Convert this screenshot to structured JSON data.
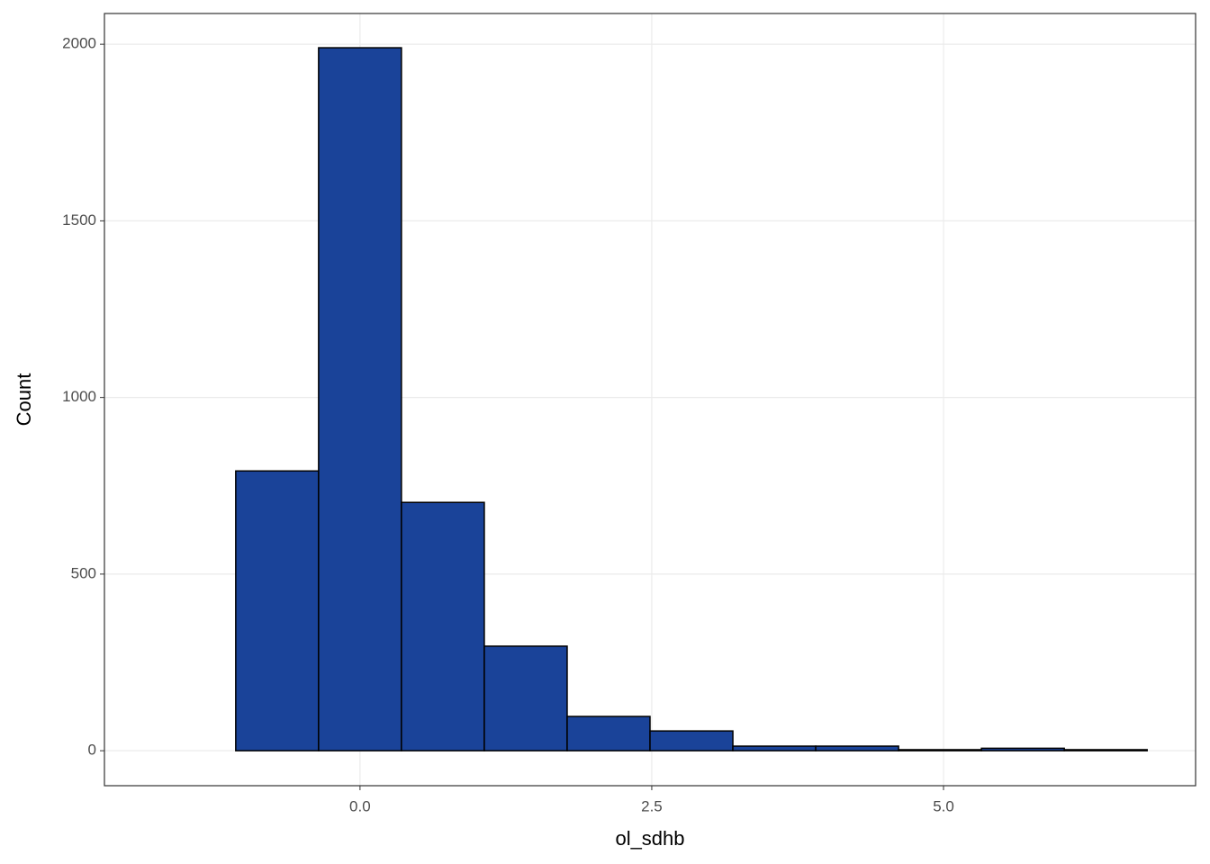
{
  "chart_data": {
    "type": "histogram",
    "x_label": "ol_sdhb",
    "y_label": "Count",
    "bins": [
      -1.775,
      -1.065,
      -0.355,
      0.355,
      1.065,
      1.775,
      2.485,
      3.195,
      3.905,
      4.615,
      5.325,
      6.035,
      6.745
    ],
    "counts": [
      0,
      792,
      1990,
      703,
      296,
      97,
      56,
      13,
      13,
      3,
      7,
      3
    ],
    "color": "#1a4399",
    "edge_color": "#000000",
    "xlim": [
      -2.19,
      7.16
    ],
    "ylim": [
      -99,
      2087
    ],
    "xticks": [
      {
        "value": 0,
        "label": "0.0"
      },
      2.5,
      {
        "value": 5,
        "label": "5.0"
      }
    ],
    "yticks": [
      0,
      500,
      1000,
      1500,
      2000
    ],
    "grid": true
  }
}
